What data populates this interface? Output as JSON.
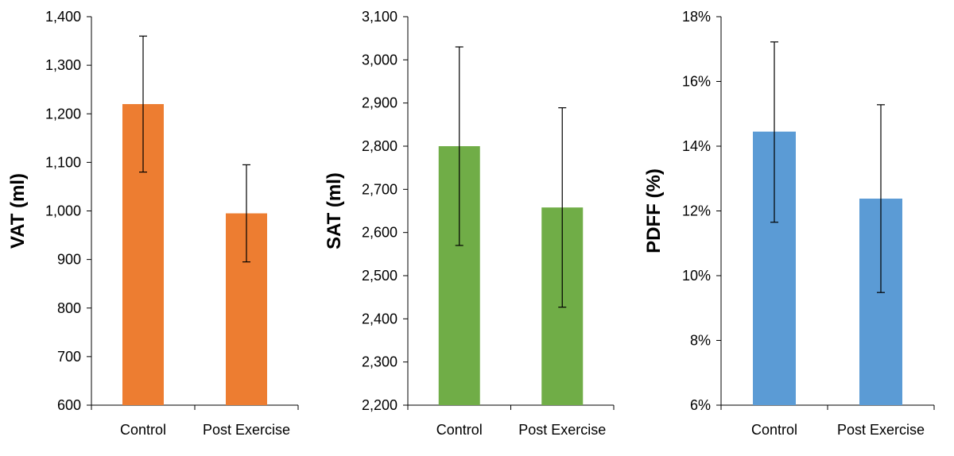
{
  "chart_data": [
    {
      "type": "bar",
      "categories": [
        "Control",
        "Post Exercise"
      ],
      "values": [
        1220,
        995
      ],
      "error_low": [
        1080,
        895
      ],
      "error_high": [
        1360,
        1095
      ],
      "ylabel": "VAT (ml)",
      "ylim": [
        600,
        1400
      ],
      "ystep": 100,
      "yticks": [
        "600",
        "700",
        "800",
        "900",
        "1,000",
        "1,100",
        "1,200",
        "1,300",
        "1,400"
      ],
      "color": "#ED7D31"
    },
    {
      "type": "bar",
      "categories": [
        "Control",
        "Post Exercise"
      ],
      "values": [
        2800,
        2658
      ],
      "error_low": [
        2570,
        2427
      ],
      "error_high": [
        3030,
        2889
      ],
      "ylabel": "SAT (ml)",
      "ylim": [
        2200,
        3100
      ],
      "ystep": 100,
      "yticks": [
        "2,200",
        "2,300",
        "2,400",
        "2,500",
        "2,600",
        "2,700",
        "2,800",
        "2,900",
        "3,000",
        "3,100"
      ],
      "color": "#70AD47"
    },
    {
      "type": "bar",
      "categories": [
        "Control",
        "Post Exercise"
      ],
      "values": [
        14.45,
        12.38
      ],
      "error_low": [
        11.65,
        9.48
      ],
      "error_high": [
        17.22,
        15.28
      ],
      "ylabel": "PDFF (%)",
      "ylim": [
        6,
        18
      ],
      "ystep": 2,
      "yticks": [
        "6%",
        "8%",
        "10%",
        "12%",
        "14%",
        "16%",
        "18%"
      ],
      "color": "#5B9BD5"
    }
  ]
}
